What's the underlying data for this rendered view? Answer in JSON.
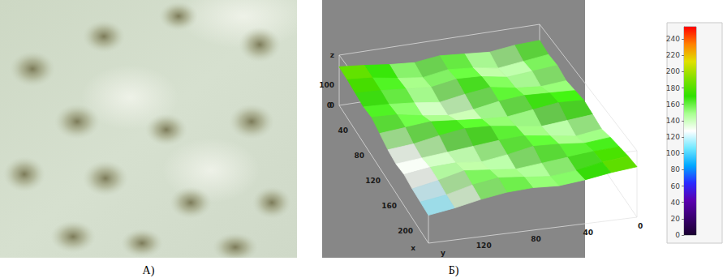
{
  "chart_data": {
    "type": "surface",
    "xlabel": "x",
    "ylabel": "y",
    "zlabel": "z",
    "x": [
      0,
      20,
      40,
      60,
      80,
      100,
      120,
      140,
      160,
      180,
      200,
      220
    ],
    "y": [
      0,
      20,
      40,
      60,
      80,
      100,
      120,
      140,
      160
    ],
    "z": [
      [
        170,
        165,
        150,
        160,
        170,
        155,
        165,
        180,
        192
      ],
      [
        160,
        145,
        130,
        150,
        160,
        140,
        155,
        175,
        185
      ],
      [
        165,
        155,
        145,
        165,
        170,
        150,
        160,
        170,
        175
      ],
      [
        150,
        140,
        150,
        170,
        155,
        135,
        150,
        160,
        165
      ],
      [
        160,
        165,
        170,
        160,
        140,
        130,
        145,
        165,
        170
      ],
      [
        170,
        175,
        160,
        145,
        150,
        160,
        170,
        160,
        150
      ],
      [
        160,
        150,
        140,
        155,
        170,
        175,
        160,
        140,
        130
      ],
      [
        150,
        135,
        150,
        165,
        160,
        150,
        140,
        130,
        120
      ],
      [
        165,
        155,
        165,
        170,
        150,
        135,
        145,
        140,
        125
      ],
      [
        175,
        170,
        160,
        150,
        140,
        150,
        160,
        135,
        115
      ],
      [
        185,
        175,
        155,
        145,
        155,
        165,
        150,
        125,
        110
      ],
      [
        190,
        180,
        165,
        155,
        160,
        155,
        140,
        120,
        105
      ]
    ],
    "xlim": [
      0,
      220
    ],
    "xticks": [
      0,
      40,
      80,
      120,
      160,
      200
    ],
    "ylim": [
      0,
      160
    ],
    "yticks": [
      0,
      40,
      80,
      120
    ],
    "zlim": [
      0,
      250
    ],
    "zticks": [
      0,
      100
    ],
    "colorbar": {
      "range": [
        0,
        255
      ],
      "ticks": [
        0,
        20,
        40,
        60,
        80,
        100,
        120,
        140,
        160,
        180,
        200,
        220,
        240
      ]
    }
  },
  "captions": [
    "А)",
    "Б)"
  ]
}
